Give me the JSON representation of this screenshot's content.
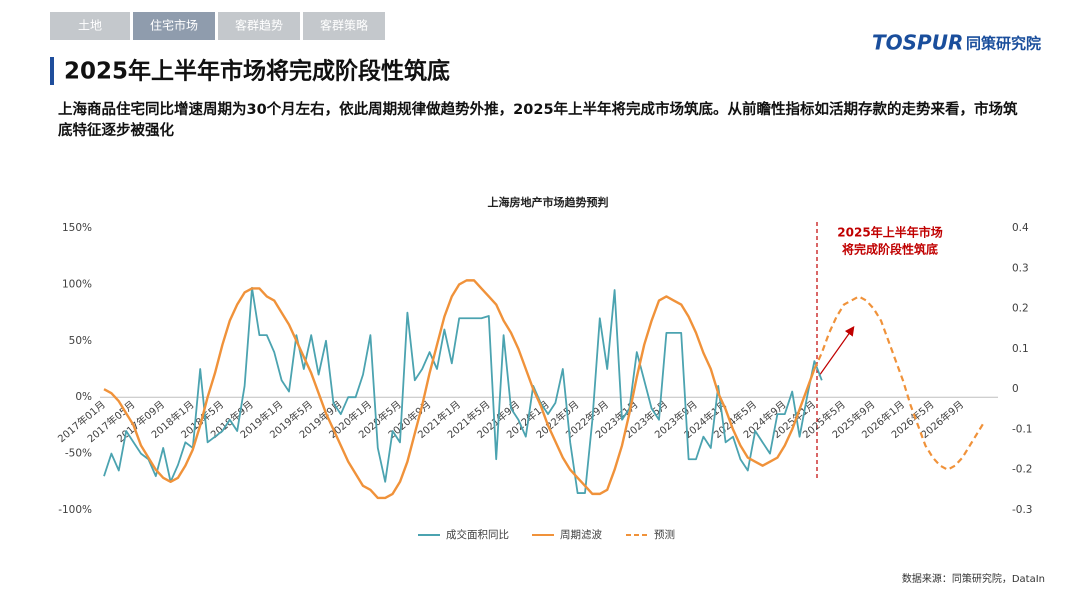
{
  "tabs": [
    "土地",
    "住宅市场",
    "客群趋势",
    "客群策略"
  ],
  "logo": {
    "brand": "TOSPUR",
    "name": "同策研究院"
  },
  "title": "2025年上半年市场将完成阶段性筑底",
  "subtitle": "上海商品住宅同比增速周期为30个月左右，依此周期规律做趋势外推，2025年上半年将完成市场筑底。从前瞻性指标如活期存款的走势来看，市场筑底特征逐步被强化",
  "source": "数据来源：同策研究院，DataIn",
  "chart_data": {
    "type": "line",
    "title": "上海房地产市场趋势预判",
    "annotation": [
      "2025年上半年市场",
      "将完成阶段性筑底"
    ],
    "legend": "bottom",
    "categories": [
      "2017年01月",
      null,
      null,
      null,
      "2017年05月",
      null,
      null,
      null,
      "2017年09月",
      null,
      null,
      null,
      "2018年1月",
      null,
      null,
      null,
      "2018年5月",
      null,
      null,
      null,
      "2018年9月",
      null,
      null,
      null,
      "2019年1月",
      null,
      null,
      null,
      "2019年5月",
      null,
      null,
      null,
      "2019年9月",
      null,
      null,
      null,
      "2020年1月",
      null,
      null,
      null,
      "2020年5月",
      null,
      null,
      null,
      "2020年9月",
      null,
      null,
      null,
      "2021年1月",
      null,
      null,
      null,
      "2021年5月",
      null,
      null,
      null,
      "2021年9月",
      null,
      null,
      null,
      "2022年1月",
      null,
      null,
      null,
      "2022年5月",
      null,
      null,
      null,
      "2022年9月",
      null,
      null,
      null,
      "2023年1月",
      null,
      null,
      null,
      "2023年5月",
      null,
      null,
      null,
      "2023年9月",
      null,
      null,
      null,
      "2024年1月",
      null,
      null,
      null,
      "2024年5月",
      null,
      null,
      null,
      "2024年9月",
      null,
      null,
      null,
      "2025年1月",
      null,
      null,
      null,
      "2025年5月",
      null,
      null,
      null,
      "2025年9月",
      null,
      null,
      null,
      "2026年1月",
      null,
      null,
      null,
      "2026年5月",
      null,
      null,
      null,
      "2026年9月",
      null,
      null,
      null
    ],
    "ylim": [
      -100,
      150
    ],
    "yticks": [
      {
        "value": -100,
        "label": "-100%"
      },
      {
        "value": -50,
        "label": "-50%"
      },
      {
        "value": 0,
        "label": "0%"
      },
      {
        "value": 50,
        "label": "50%"
      },
      {
        "value": 100,
        "label": "100%"
      },
      {
        "value": 150,
        "label": "150%"
      }
    ],
    "y2lim": [
      -0.3,
      0.4
    ],
    "y2ticks": [
      -0.3,
      -0.2,
      -0.1,
      0,
      0.1,
      0.2,
      0.3,
      0.4
    ],
    "series": [
      {
        "name": "成交面积同比",
        "color": "#4ba3b0",
        "dashed": false,
        "values": [
          -70,
          -50,
          -65,
          -30,
          -40,
          -50,
          -55,
          -70,
          -45,
          -75,
          -60,
          -40,
          -45,
          25,
          -40,
          -35,
          -30,
          -20,
          -30,
          10,
          97,
          55,
          55,
          40,
          15,
          5,
          55,
          25,
          55,
          20,
          50,
          -5,
          -15,
          0,
          0,
          20,
          55,
          -45,
          -75,
          -30,
          -40,
          75,
          15,
          25,
          40,
          25,
          60,
          30,
          70,
          70,
          70,
          70,
          72,
          -55,
          55,
          -10,
          -20,
          -35,
          10,
          -5,
          -15,
          -5,
          25,
          -40,
          -85,
          -85,
          -20,
          70,
          25,
          95,
          -20,
          -10,
          40,
          15,
          -10,
          -20,
          57,
          57,
          57,
          -55,
          -55,
          -35,
          -45,
          10,
          -40,
          -35,
          -55,
          -65,
          -30,
          -40,
          -50,
          -15,
          -15,
          5,
          -35,
          0,
          32,
          15,
          null,
          null,
          null,
          null,
          null,
          null,
          null,
          null,
          null,
          null,
          null,
          null,
          null,
          null,
          null,
          null,
          null,
          null,
          null,
          null,
          null,
          null
        ]
      },
      {
        "name": "周期滤波",
        "color": "#f0923a",
        "dashed": false,
        "axis": "y2",
        "values": [
          0,
          -0.01,
          -0.03,
          -0.06,
          -0.09,
          -0.14,
          -0.17,
          -0.2,
          -0.22,
          -0.23,
          -0.22,
          -0.19,
          -0.15,
          -0.09,
          -0.02,
          0.04,
          0.11,
          0.17,
          0.21,
          0.24,
          0.25,
          0.25,
          0.23,
          0.22,
          0.19,
          0.16,
          0.12,
          0.08,
          0.04,
          -0.01,
          -0.06,
          -0.1,
          -0.14,
          -0.18,
          -0.21,
          -0.24,
          -0.25,
          -0.27,
          -0.27,
          -0.26,
          -0.23,
          -0.18,
          -0.11,
          -0.04,
          0.04,
          0.11,
          0.18,
          0.23,
          0.26,
          0.27,
          0.27,
          0.25,
          0.23,
          0.21,
          0.17,
          0.14,
          0.1,
          0.05,
          0,
          -0.04,
          -0.09,
          -0.13,
          -0.17,
          -0.2,
          -0.22,
          -0.24,
          -0.26,
          -0.26,
          -0.25,
          -0.2,
          -0.14,
          -0.06,
          0.03,
          0.11,
          0.17,
          0.22,
          0.23,
          0.22,
          0.21,
          0.18,
          0.14,
          0.09,
          0.05,
          -0.01,
          -0.05,
          -0.1,
          -0.14,
          -0.17,
          -0.18,
          -0.19,
          -0.18,
          -0.17,
          -0.14,
          -0.1,
          -0.05,
          0,
          0.05,
          null,
          null,
          null,
          null,
          null,
          null,
          null,
          null,
          null,
          null,
          null,
          null,
          null,
          null,
          null,
          null,
          null,
          null,
          null,
          null,
          null,
          null,
          null
        ]
      },
      {
        "name": "预测",
        "color": "#f0923a",
        "dashed": true,
        "axis": "y2",
        "values": [
          null,
          null,
          null,
          null,
          null,
          null,
          null,
          null,
          null,
          null,
          null,
          null,
          null,
          null,
          null,
          null,
          null,
          null,
          null,
          null,
          null,
          null,
          null,
          null,
          null,
          null,
          null,
          null,
          null,
          null,
          null,
          null,
          null,
          null,
          null,
          null,
          null,
          null,
          null,
          null,
          null,
          null,
          null,
          null,
          null,
          null,
          null,
          null,
          null,
          null,
          null,
          null,
          null,
          null,
          null,
          null,
          null,
          null,
          null,
          null,
          null,
          null,
          null,
          null,
          null,
          null,
          null,
          null,
          null,
          null,
          null,
          null,
          null,
          null,
          null,
          null,
          null,
          null,
          null,
          null,
          null,
          null,
          null,
          null,
          null,
          null,
          null,
          null,
          null,
          null,
          null,
          null,
          null,
          null,
          null,
          null,
          0.05,
          0.09,
          0.14,
          0.18,
          0.21,
          0.22,
          0.23,
          0.22,
          0.2,
          0.17,
          0.12,
          0.07,
          0.02,
          -0.04,
          -0.09,
          -0.14,
          -0.17,
          -0.19,
          -0.2,
          -0.19,
          -0.17,
          -0.14,
          -0.11,
          -0.08
        ]
      }
    ]
  }
}
